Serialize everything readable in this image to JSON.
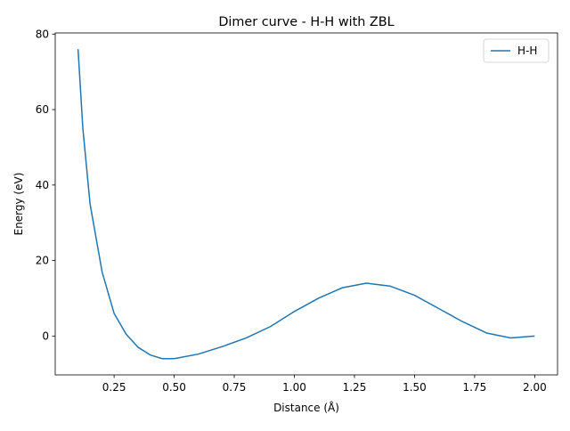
{
  "chart_data": {
    "type": "line",
    "title": "Dimer curve - H-H with ZBL",
    "x_label": "Distance (Å)",
    "y_label": "Energy (eV)",
    "x": [
      0.1,
      0.12,
      0.15,
      0.2,
      0.25,
      0.3,
      0.35,
      0.4,
      0.45,
      0.5,
      0.6,
      0.7,
      0.8,
      0.9,
      1.0,
      1.1,
      1.2,
      1.3,
      1.4,
      1.5,
      1.6,
      1.7,
      1.8,
      1.9,
      2.0
    ],
    "series": [
      {
        "name": "H-H",
        "color": "#1f77b4",
        "values": [
          76,
          55,
          35,
          17,
          6,
          0.5,
          -3,
          -5,
          -6,
          -6,
          -4.8,
          -2.8,
          -0.5,
          2.5,
          6.5,
          10,
          12.8,
          14,
          13.2,
          10.8,
          7.3,
          3.8,
          0.8,
          -0.5,
          0
        ]
      }
    ],
    "xlim": [
      0.005,
      2.095
    ],
    "ylim": [
      -10.3,
      80.3
    ],
    "xticks": [
      {
        "value": 0.25,
        "label": "0.25"
      },
      {
        "value": 0.5,
        "label": "0.50"
      },
      {
        "value": 0.75,
        "label": "0.75"
      },
      {
        "value": 1.0,
        "label": "1.00"
      },
      {
        "value": 1.25,
        "label": "1.25"
      },
      {
        "value": 1.5,
        "label": "1.50"
      },
      {
        "value": 1.75,
        "label": "1.75"
      },
      {
        "value": 2.0,
        "label": "2.00"
      }
    ],
    "yticks": [
      0,
      20,
      40,
      60,
      80
    ],
    "legend": "upper right"
  }
}
